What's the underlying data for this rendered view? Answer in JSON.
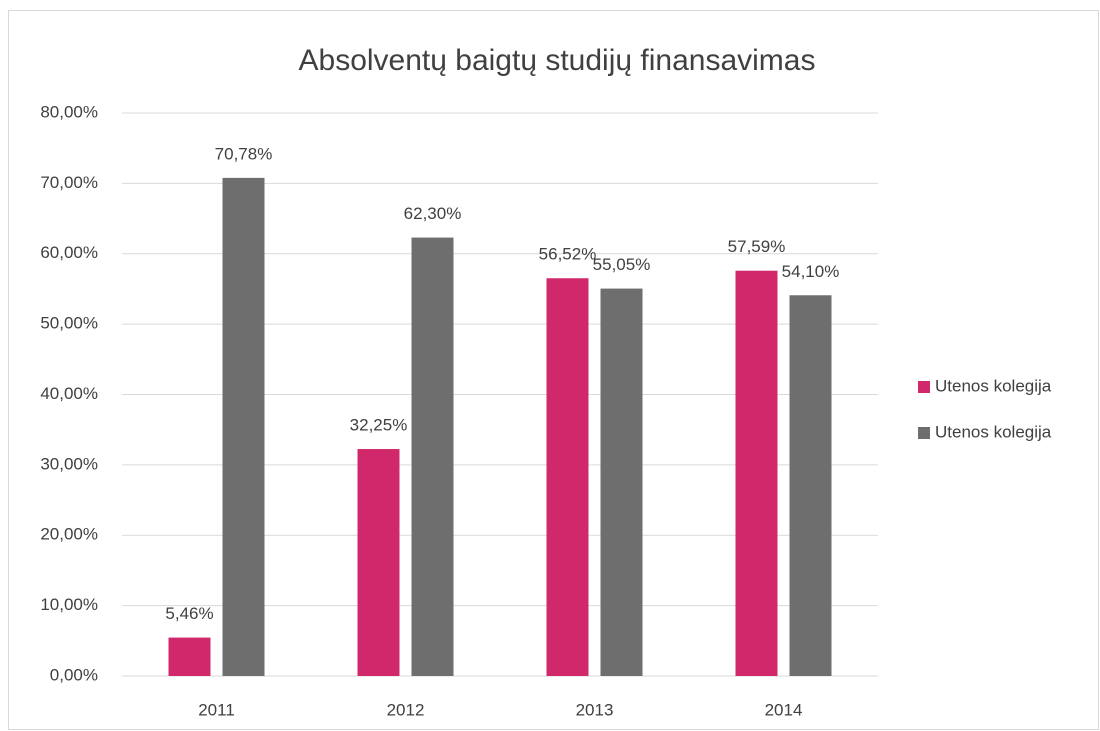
{
  "chart_data": {
    "type": "bar",
    "title": "Absolventų baigtų studijų finansavimas",
    "categories": [
      "2011",
      "2012",
      "2013",
      "2014"
    ],
    "series": [
      {
        "name": "Utenos kolegija",
        "color": "#d0286b",
        "values": [
          5.46,
          32.25,
          56.52,
          57.59
        ],
        "value_labels": [
          "5,46%",
          "32,25%",
          "56,52%",
          "57,59%"
        ]
      },
      {
        "name": "Utenos kolegija",
        "color": "#6e6e6e",
        "values": [
          70.78,
          62.3,
          55.05,
          54.1
        ],
        "value_labels": [
          "70,78%",
          "62,30%",
          "55,05%",
          "54,10%"
        ]
      }
    ],
    "ylim": [
      0,
      80
    ],
    "yticks": [
      {
        "value": 0,
        "label": "0,00%"
      },
      {
        "value": 10,
        "label": "10,00%"
      },
      {
        "value": 20,
        "label": "20,00%"
      },
      {
        "value": 30,
        "label": "30,00%"
      },
      {
        "value": 40,
        "label": "40,00%"
      },
      {
        "value": 50,
        "label": "50,00%"
      },
      {
        "value": 60,
        "label": "60,00%"
      },
      {
        "value": 70,
        "label": "70,00%"
      },
      {
        "value": 80,
        "label": "80,00%"
      }
    ],
    "grid": true,
    "legend": "right"
  }
}
